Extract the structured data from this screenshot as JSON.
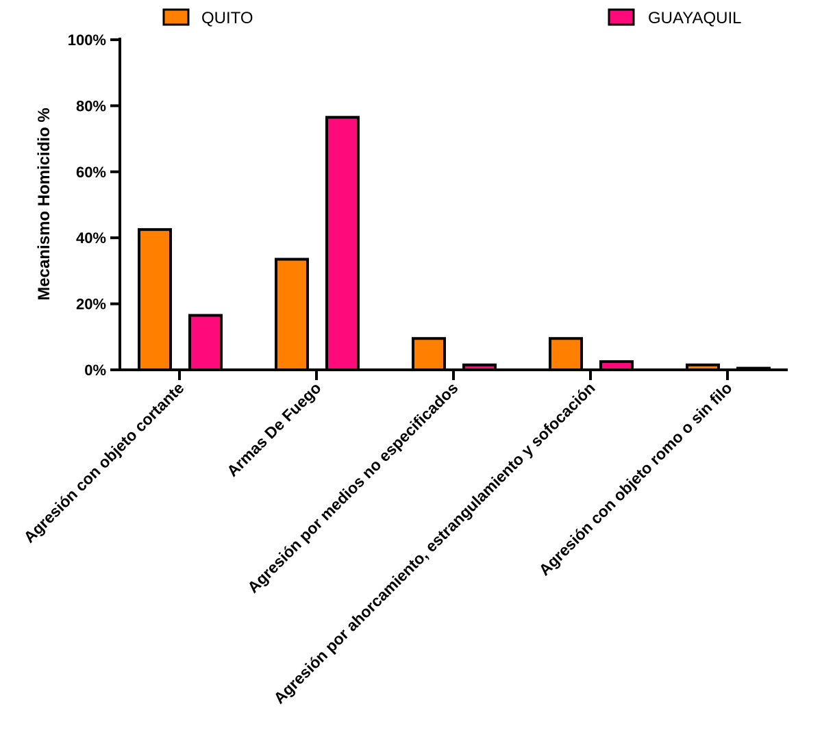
{
  "chart_data": {
    "type": "bar",
    "title": "",
    "xlabel": "",
    "ylabel": "Mecanismo Homicidio %",
    "ylim": [
      0,
      100
    ],
    "yticks": [
      0,
      20,
      40,
      60,
      80,
      100
    ],
    "ytick_labels": [
      "0%",
      "20%",
      "40%",
      "60%",
      "80%",
      "100%"
    ],
    "categories": [
      "Agresión con objeto cortante",
      "Armas De Fuego",
      "Agresión por medios no especificados",
      "Agresión por ahorcamiento, estrangulamiento y sofocación",
      "Agresión con objeto romo o sin filo"
    ],
    "series": [
      {
        "name": "QUITO",
        "color": "#FF8000",
        "values": [
          42.5,
          33.5,
          9.5,
          9.5,
          1.5
        ]
      },
      {
        "name": "GUAYAQUIL",
        "color": "#FF0A7A",
        "values": [
          16.5,
          76.5,
          1.5,
          2.5,
          0.5
        ]
      }
    ],
    "legend_position": "top",
    "grid": false
  }
}
